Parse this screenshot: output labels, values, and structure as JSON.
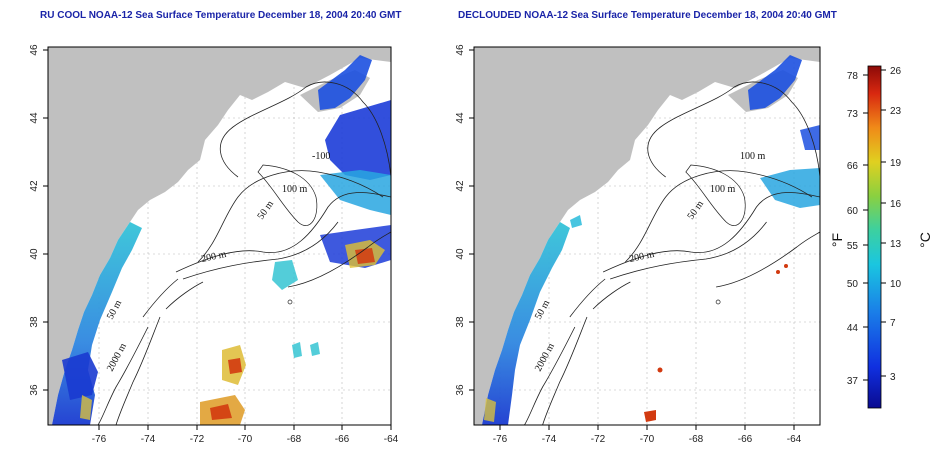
{
  "panels": [
    {
      "title": "RU COOL NOAA-12 Sea Surface Temperature December 18, 2004 20:40 GMT",
      "contour_labels": [
        "-100",
        "100 m",
        "50 m",
        "200 m",
        "50 m",
        "2000 m"
      ]
    },
    {
      "title": "DECLOUDED NOAA-12 Sea Surface Temperature December 18, 2004 20:40 GMT",
      "contour_labels": [
        "100 m",
        "100 m",
        "50 m",
        "200 m",
        "50 m",
        "2000 m"
      ]
    }
  ],
  "axes": {
    "x_ticks": [
      "-76",
      "-74",
      "-72",
      "-70",
      "-68",
      "-66",
      "-64"
    ],
    "y_ticks": [
      "36",
      "38",
      "40",
      "42",
      "44",
      "46"
    ]
  },
  "colorbar": {
    "fahrenheit_label": "°F",
    "celsius_label": "°C",
    "fahrenheit_ticks": [
      "78",
      "73",
      "66",
      "60",
      "55",
      "50",
      "44",
      "37"
    ],
    "celsius_ticks": [
      "26",
      "23",
      "19",
      "16",
      "13",
      "10",
      "7",
      "3"
    ]
  },
  "colors": {
    "land": "#c0c0c0",
    "cold": "#1c3cd8",
    "mid": "#1ab6d8",
    "warm": "#d23a10",
    "title": "#1a24a8"
  }
}
